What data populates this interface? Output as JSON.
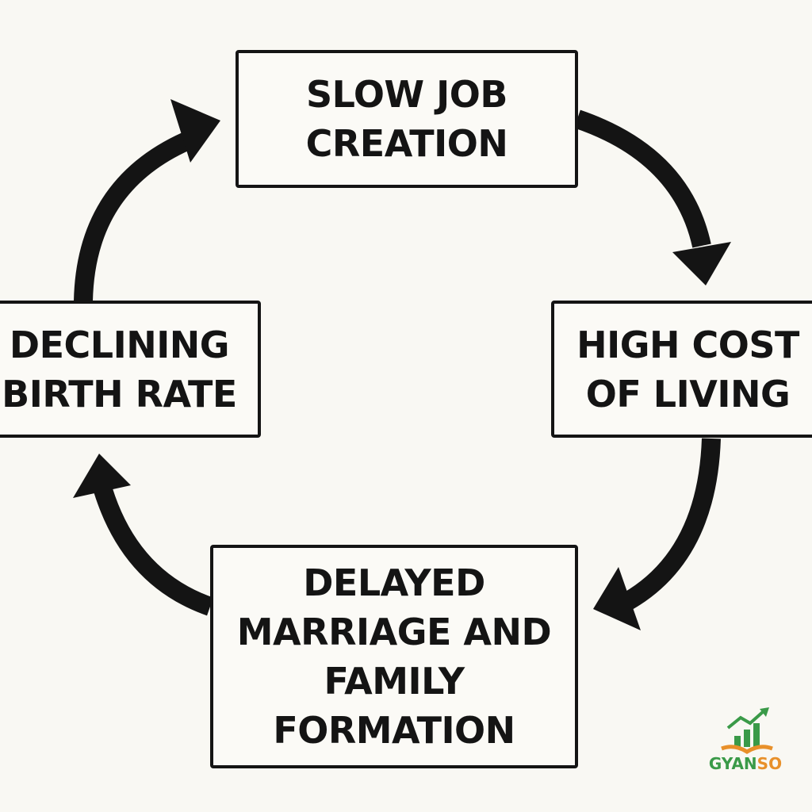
{
  "nodes": [
    {
      "lines": [
        "SLOW JOB",
        "CREATION"
      ]
    },
    {
      "lines": [
        "HIGH COST",
        "OF LIVING"
      ]
    },
    {
      "lines": [
        "DELAYED",
        "MARRIAGE AND",
        "FAMILY",
        "FORMATION"
      ]
    },
    {
      "lines": [
        "DECLINING",
        "BIRTH RATE"
      ]
    }
  ],
  "logo": {
    "text": "GYANSO"
  }
}
